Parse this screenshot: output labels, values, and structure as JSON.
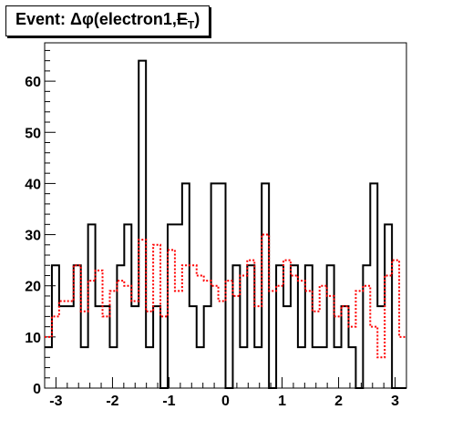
{
  "title": {
    "prefix": "Event: Δφ(electron1,",
    "met_symbol": "E",
    "met_subscript": "T",
    "suffix": ")"
  },
  "chart_data": {
    "type": "histogram",
    "xlim": [
      -3.2,
      3.2
    ],
    "ylim": [
      0,
      67.5
    ],
    "x_ticks": [
      -3,
      -2,
      -1,
      0,
      1,
      2,
      3
    ],
    "y_ticks": [
      0,
      10,
      20,
      30,
      40,
      50,
      60
    ],
    "bins": 50,
    "series": [
      {
        "style": "solid",
        "color": "#000000",
        "values": [
          8,
          24,
          16,
          16,
          24,
          8,
          32,
          16,
          16,
          8,
          24,
          32,
          16,
          64,
          8,
          16,
          0,
          32,
          32,
          40,
          16,
          8,
          16,
          40,
          40,
          0,
          24,
          8,
          24,
          8,
          40,
          0,
          24,
          16,
          24,
          8,
          24,
          8,
          8,
          24,
          8,
          16,
          8,
          0,
          24,
          40,
          16,
          32,
          0,
          0
        ]
      },
      {
        "style": "dotted",
        "color": "#ff0000",
        "values": [
          10,
          14,
          17,
          17,
          24,
          15,
          21,
          23,
          14,
          19,
          21,
          20,
          17,
          29,
          15,
          28,
          14,
          27,
          19,
          24,
          24,
          22,
          21,
          20,
          17,
          21,
          18,
          22,
          25,
          16,
          30,
          19,
          20,
          25,
          22,
          21,
          19,
          15,
          20,
          18,
          14,
          16,
          12,
          19,
          20,
          12,
          6,
          22,
          25,
          10
        ]
      }
    ]
  }
}
